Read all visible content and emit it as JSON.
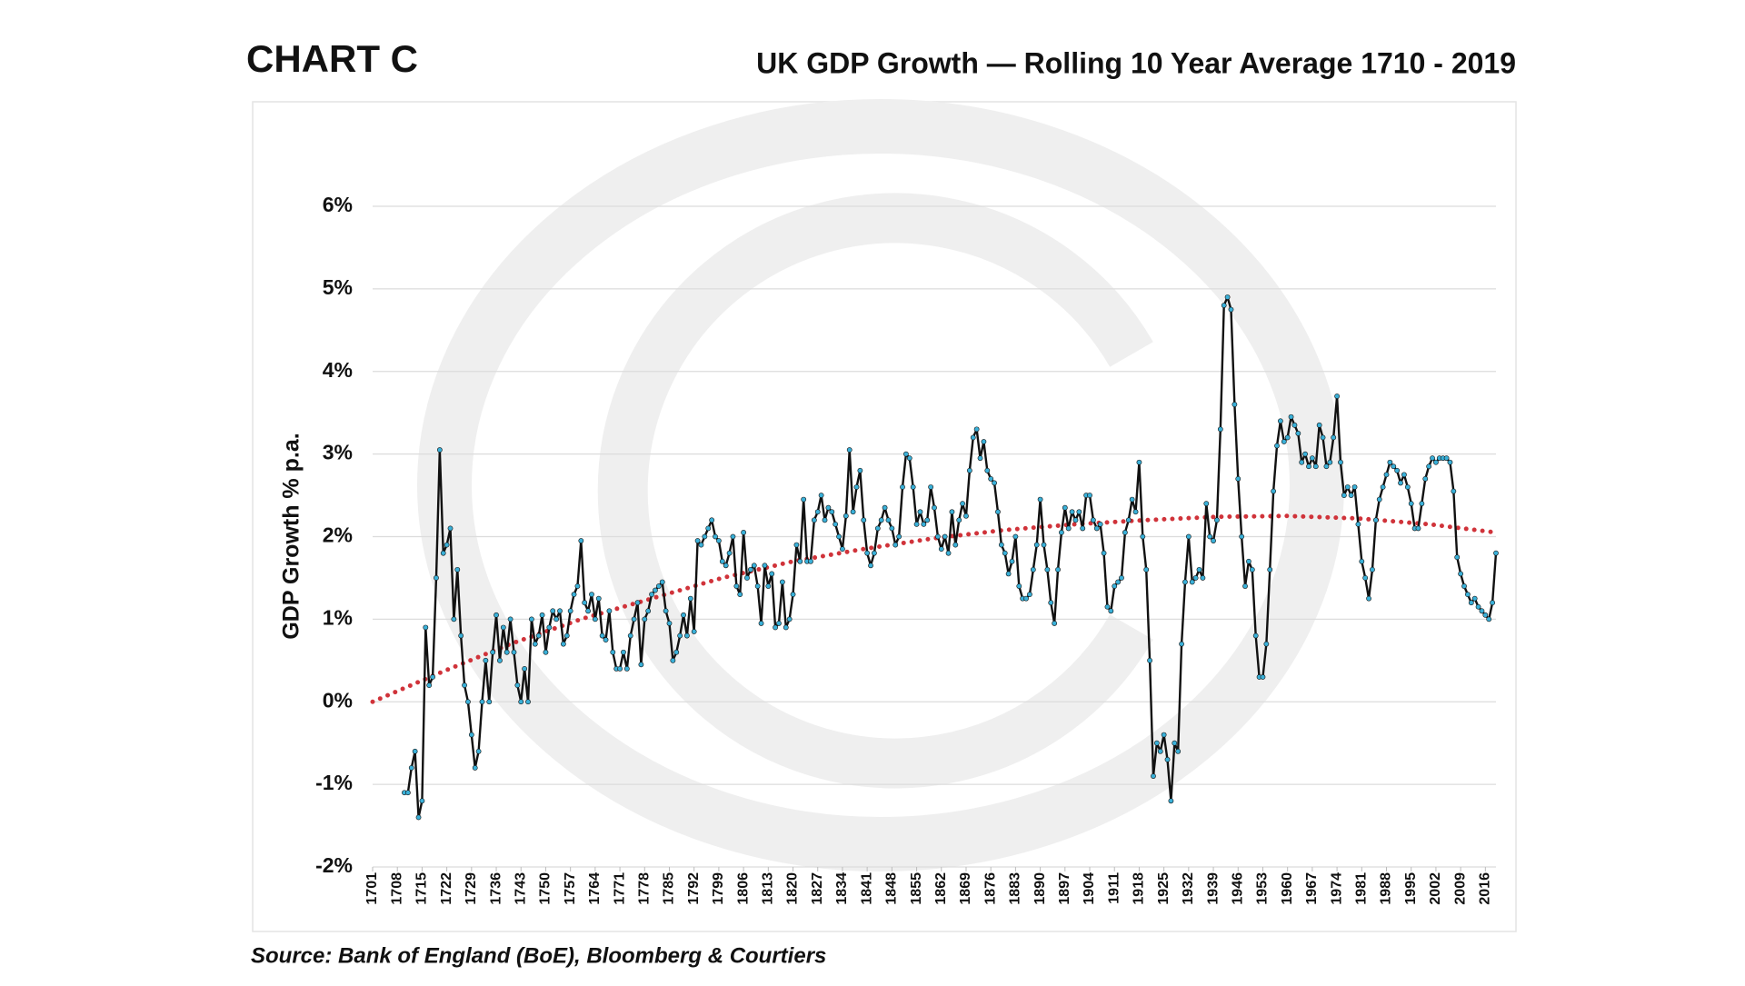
{
  "chart_data": {
    "type": "line",
    "label": "CHART C",
    "title": "UK GDP Growth — Rolling 10 Year Average 1710 - 2019",
    "y_label": "GDP Growth % p.a.",
    "source": "Source: Bank of England (BoE), Bloomberg & Courtiers",
    "x": [
      1710,
      1711,
      1712,
      1713,
      1714,
      1715,
      1716,
      1717,
      1718,
      1719,
      1720,
      1721,
      1722,
      1723,
      1724,
      1725,
      1726,
      1727,
      1728,
      1729,
      1730,
      1731,
      1732,
      1733,
      1734,
      1735,
      1736,
      1737,
      1738,
      1739,
      1740,
      1741,
      1742,
      1743,
      1744,
      1745,
      1746,
      1747,
      1748,
      1749,
      1750,
      1751,
      1752,
      1753,
      1754,
      1755,
      1756,
      1757,
      1758,
      1759,
      1760,
      1761,
      1762,
      1763,
      1764,
      1765,
      1766,
      1767,
      1768,
      1769,
      1770,
      1771,
      1772,
      1773,
      1774,
      1775,
      1776,
      1777,
      1778,
      1779,
      1780,
      1781,
      1782,
      1783,
      1784,
      1785,
      1786,
      1787,
      1788,
      1789,
      1790,
      1791,
      1792,
      1793,
      1794,
      1795,
      1796,
      1797,
      1798,
      1799,
      1800,
      1801,
      1802,
      1803,
      1804,
      1805,
      1806,
      1807,
      1808,
      1809,
      1810,
      1811,
      1812,
      1813,
      1814,
      1815,
      1816,
      1817,
      1818,
      1819,
      1820,
      1821,
      1822,
      1823,
      1824,
      1825,
      1826,
      1827,
      1828,
      1829,
      1830,
      1831,
      1832,
      1833,
      1834,
      1835,
      1836,
      1837,
      1838,
      1839,
      1840,
      1841,
      1842,
      1843,
      1844,
      1845,
      1846,
      1847,
      1848,
      1849,
      1850,
      1851,
      1852,
      1853,
      1854,
      1855,
      1856,
      1857,
      1858,
      1859,
      1860,
      1861,
      1862,
      1863,
      1864,
      1865,
      1866,
      1867,
      1868,
      1869,
      1870,
      1871,
      1872,
      1873,
      1874,
      1875,
      1876,
      1877,
      1878,
      1879,
      1880,
      1881,
      1882,
      1883,
      1884,
      1885,
      1886,
      1887,
      1888,
      1889,
      1890,
      1891,
      1892,
      1893,
      1894,
      1895,
      1896,
      1897,
      1898,
      1899,
      1900,
      1901,
      1902,
      1903,
      1904,
      1905,
      1906,
      1907,
      1908,
      1909,
      1910,
      1911,
      1912,
      1913,
      1914,
      1915,
      1916,
      1917,
      1918,
      1919,
      1920,
      1921,
      1922,
      1923,
      1924,
      1925,
      1926,
      1927,
      1928,
      1929,
      1930,
      1931,
      1932,
      1933,
      1934,
      1935,
      1936,
      1937,
      1938,
      1939,
      1940,
      1941,
      1942,
      1943,
      1944,
      1945,
      1946,
      1947,
      1948,
      1949,
      1950,
      1951,
      1952,
      1953,
      1954,
      1955,
      1956,
      1957,
      1958,
      1959,
      1960,
      1961,
      1962,
      1963,
      1964,
      1965,
      1966,
      1967,
      1968,
      1969,
      1970,
      1971,
      1972,
      1973,
      1974,
      1975,
      1976,
      1977,
      1978,
      1979,
      1980,
      1981,
      1982,
      1983,
      1984,
      1985,
      1986,
      1987,
      1988,
      1989,
      1990,
      1991,
      1992,
      1993,
      1994,
      1995,
      1996,
      1997,
      1998,
      1999,
      2000,
      2001,
      2002,
      2003,
      2004,
      2005,
      2006,
      2007,
      2008,
      2009,
      2010,
      2011,
      2012,
      2013,
      2014,
      2015,
      2016,
      2017,
      2018,
      2019
    ],
    "series": [
      {
        "name": "UK GDP Growth",
        "color": "#111111",
        "marker_color": "#3ab0d8",
        "values": [
          -1.1,
          -1.1,
          -0.8,
          -0.6,
          -1.4,
          -1.2,
          0.9,
          0.2,
          0.3,
          1.5,
          3.05,
          1.8,
          1.9,
          2.1,
          1.0,
          1.6,
          0.8,
          0.2,
          0.0,
          -0.4,
          -0.8,
          -0.6,
          0.0,
          0.5,
          0.0,
          0.6,
          1.05,
          0.5,
          0.9,
          0.6,
          1.0,
          0.6,
          0.2,
          0.0,
          0.4,
          0.0,
          1.0,
          0.7,
          0.8,
          1.05,
          0.6,
          0.9,
          1.1,
          1.0,
          1.1,
          0.7,
          0.8,
          1.1,
          1.3,
          1.4,
          1.95,
          1.2,
          1.1,
          1.3,
          1.0,
          1.25,
          0.8,
          0.75,
          1.1,
          0.6,
          0.4,
          0.4,
          0.6,
          0.4,
          0.8,
          1.0,
          1.2,
          0.45,
          1.0,
          1.1,
          1.3,
          1.35,
          1.4,
          1.45,
          1.1,
          0.95,
          0.5,
          0.6,
          0.8,
          1.05,
          0.8,
          1.25,
          0.85,
          1.95,
          1.9,
          2.0,
          2.1,
          2.2,
          2.0,
          1.95,
          1.7,
          1.65,
          1.8,
          2.0,
          1.4,
          1.3,
          2.05,
          1.5,
          1.6,
          1.65,
          1.4,
          0.95,
          1.65,
          1.4,
          1.55,
          0.9,
          0.95,
          1.45,
          0.9,
          1.0,
          1.3,
          1.9,
          1.7,
          2.45,
          1.7,
          1.7,
          2.2,
          2.3,
          2.5,
          2.2,
          2.35,
          2.3,
          2.15,
          2.0,
          1.85,
          2.25,
          3.05,
          2.3,
          2.6,
          2.8,
          2.2,
          1.8,
          1.65,
          1.8,
          2.1,
          2.2,
          2.35,
          2.2,
          2.1,
          1.9,
          2.0,
          2.6,
          3.0,
          2.95,
          2.6,
          2.15,
          2.3,
          2.15,
          2.2,
          2.6,
          2.35,
          2.0,
          1.85,
          2.0,
          1.8,
          2.3,
          1.9,
          2.2,
          2.4,
          2.25,
          2.8,
          3.2,
          3.3,
          2.95,
          3.15,
          2.8,
          2.7,
          2.65,
          2.3,
          1.9,
          1.8,
          1.55,
          1.7,
          2.0,
          1.4,
          1.25,
          1.25,
          1.3,
          1.6,
          1.9,
          2.45,
          1.9,
          1.6,
          1.2,
          0.95,
          1.6,
          2.05,
          2.35,
          2.1,
          2.3,
          2.2,
          2.3,
          2.1,
          2.5,
          2.5,
          2.2,
          2.1,
          2.15,
          1.8,
          1.15,
          1.1,
          1.4,
          1.45,
          1.5,
          2.05,
          2.2,
          2.45,
          2.3,
          2.9,
          2.0,
          1.6,
          0.5,
          -0.9,
          -0.5,
          -0.6,
          -0.4,
          -0.7,
          -1.2,
          -0.5,
          -0.6,
          0.7,
          1.45,
          2.0,
          1.45,
          1.5,
          1.6,
          1.5,
          2.4,
          2.0,
          1.95,
          2.2,
          3.3,
          4.8,
          4.9,
          4.75,
          3.6,
          2.7,
          2.0,
          1.4,
          1.7,
          1.6,
          0.8,
          0.3,
          0.3,
          0.7,
          1.6,
          2.55,
          3.1,
          3.4,
          3.15,
          3.2,
          3.45,
          3.35,
          3.25,
          2.9,
          3.0,
          2.85,
          2.95,
          2.85,
          3.35,
          3.2,
          2.85,
          2.9,
          3.2,
          3.7,
          2.9,
          2.5,
          2.6,
          2.5,
          2.6,
          2.15,
          1.7,
          1.5,
          1.25,
          1.6,
          2.2,
          2.45,
          2.6,
          2.75,
          2.9,
          2.85,
          2.8,
          2.65,
          2.75,
          2.6,
          2.4,
          2.1,
          2.1,
          2.4,
          2.7,
          2.85,
          2.95,
          2.9,
          2.95,
          2.95,
          2.95,
          2.9,
          2.55,
          1.75,
          1.55,
          1.4,
          1.3,
          1.2,
          1.25,
          1.15,
          1.1,
          1.05,
          1.0,
          1.2,
          1.8
        ]
      }
    ],
    "trend": {
      "color": "#d0333a",
      "style": "dotted",
      "x": [
        1701,
        1720,
        1740,
        1760,
        1780,
        1800,
        1820,
        1840,
        1860,
        1880,
        1900,
        1920,
        1940,
        1960,
        1980,
        2000,
        2019
      ],
      "values": [
        0.0,
        0.35,
        0.7,
        1.0,
        1.25,
        1.5,
        1.7,
        1.85,
        1.98,
        2.08,
        2.15,
        2.2,
        2.24,
        2.25,
        2.22,
        2.15,
        2.05
      ]
    },
    "xlim": [
      1701,
      2019
    ],
    "xticks": [
      1701,
      1708,
      1715,
      1722,
      1729,
      1736,
      1743,
      1750,
      1757,
      1764,
      1771,
      1778,
      1785,
      1792,
      1799,
      1806,
      1813,
      1820,
      1827,
      1834,
      1841,
      1848,
      1855,
      1862,
      1869,
      1876,
      1883,
      1890,
      1897,
      1904,
      1911,
      1918,
      1925,
      1932,
      1939,
      1946,
      1953,
      1960,
      1967,
      1974,
      1981,
      1988,
      1995,
      2002,
      2009,
      2016
    ],
    "ylim": [
      -2,
      6
    ],
    "yticks": [
      {
        "value": -2,
        "label": "-2%"
      },
      {
        "value": -1,
        "label": "-1%"
      },
      {
        "value": 0,
        "label": "0%"
      },
      {
        "value": 1,
        "label": "1%"
      },
      {
        "value": 2,
        "label": "2%"
      },
      {
        "value": 3,
        "label": "3%"
      },
      {
        "value": 4,
        "label": "4%"
      },
      {
        "value": 5,
        "label": "5%"
      },
      {
        "value": 6,
        "label": "6%"
      }
    ],
    "grid": true
  }
}
